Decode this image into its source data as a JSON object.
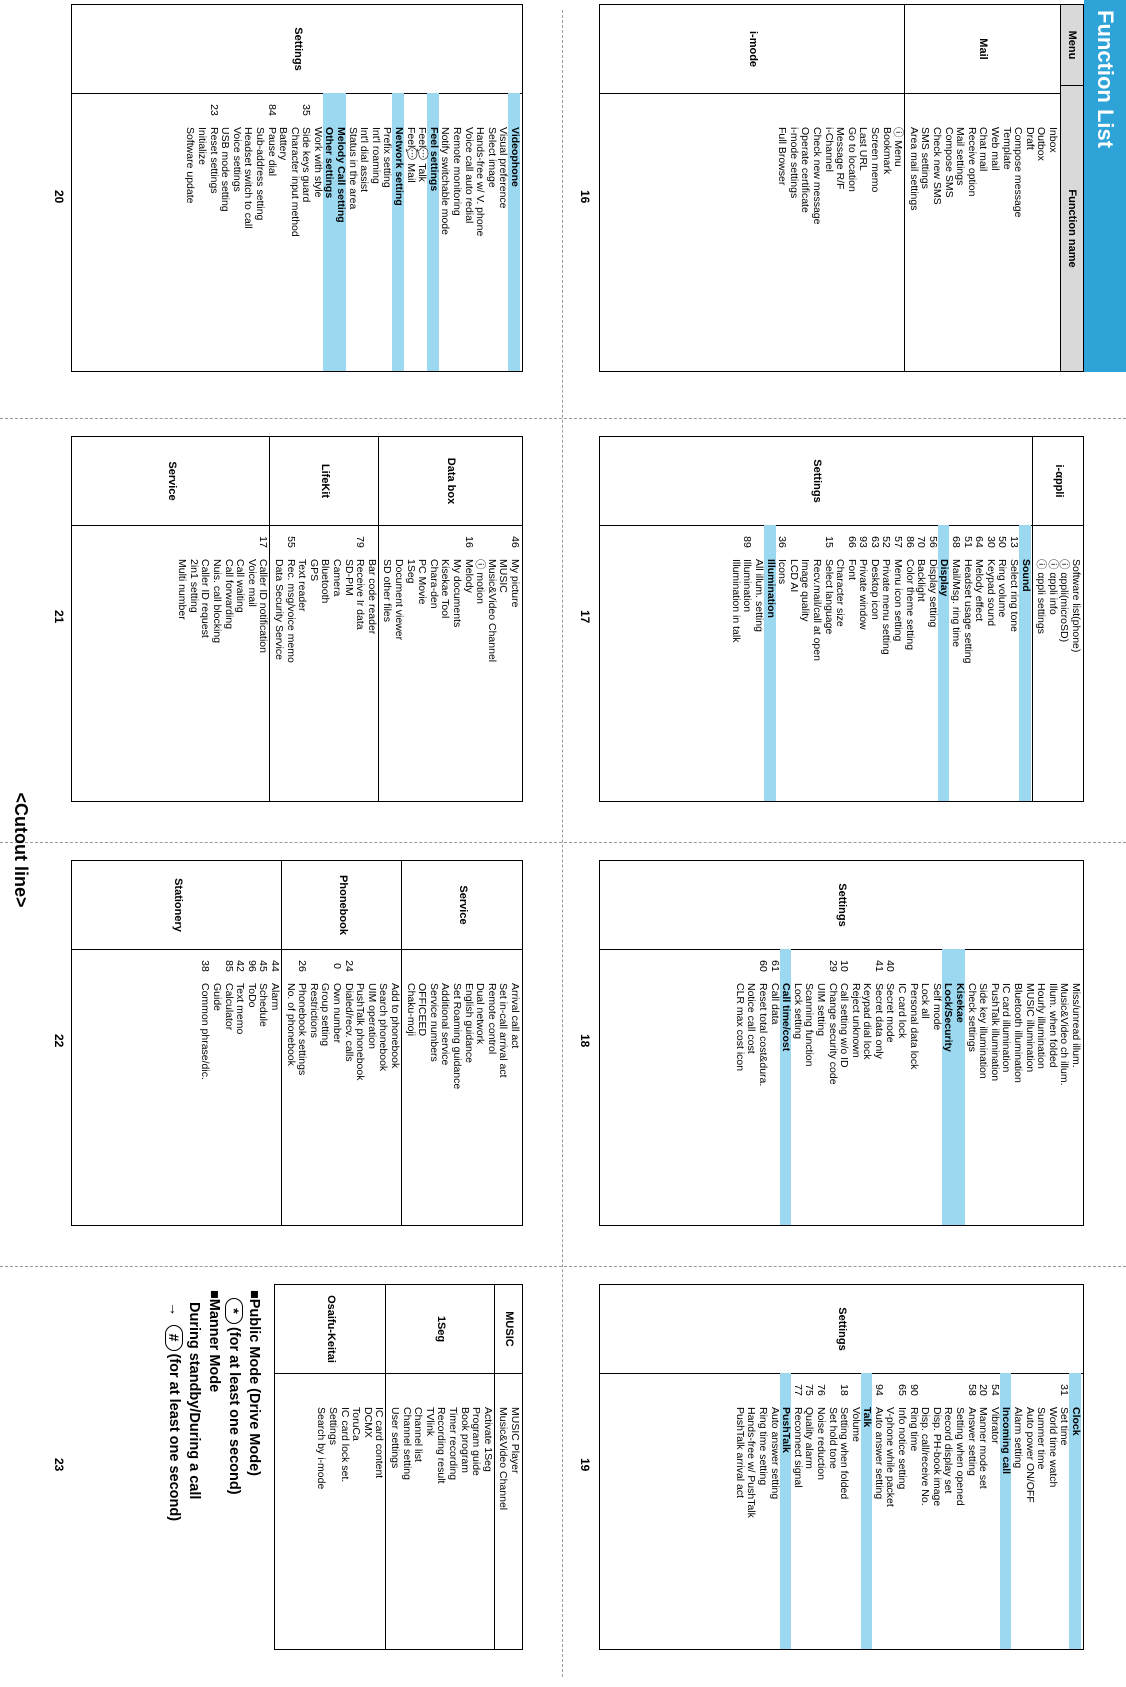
{
  "title": "Function List",
  "cutout_label": "<Cutout line>",
  "header": {
    "menu": "Menu",
    "function_name": "Function name"
  },
  "pages": {
    "p16": "16",
    "p17": "17",
    "p18": "18",
    "p19": "19",
    "p20": "20",
    "p21": "21",
    "p22": "22",
    "p23": "23"
  },
  "modes": {
    "public_title": "■Public Mode (Drive Mode)",
    "public_key": "*",
    "public_desc": "(for at least one second)",
    "manner_title": "■Manner Mode",
    "manner_line": "During standby/During a call",
    "manner_arrow": "→",
    "manner_key": "#",
    "manner_desc": "(for at least one second)"
  },
  "p16": [
    {
      "cat": "Mail",
      "rows": [
        [
          "",
          "Inbox"
        ],
        [
          "",
          "Outbox"
        ],
        [
          "",
          "Draft"
        ],
        [
          "",
          "Compose message"
        ],
        [
          "",
          "Template"
        ],
        [
          "",
          "Web mail"
        ],
        [
          "",
          "Chat mail"
        ],
        [
          "",
          "Receive option"
        ],
        [
          "",
          "Mail settings"
        ],
        [
          "",
          "Compose SMS"
        ],
        [
          "",
          "Check new SMS"
        ],
        [
          "",
          "SMS settings"
        ],
        [
          "",
          "Area mail settings"
        ]
      ]
    },
    {
      "cat": "i-mode",
      "rows": [
        [
          "",
          "ⓘ Menu"
        ],
        [
          "",
          "Bookmark"
        ],
        [
          "",
          "Screen memo"
        ],
        [
          "",
          "Last URL"
        ],
        [
          "",
          "Go to location"
        ],
        [
          "",
          "Message R/F"
        ],
        [
          "",
          "i-Channel"
        ],
        [
          "",
          "Check new message"
        ],
        [
          "",
          "Operate certificate"
        ],
        [
          "",
          "i-mode settings"
        ],
        [
          "",
          "Full Browser"
        ]
      ]
    }
  ],
  "p17": [
    {
      "cat": "i-αppli",
      "rows": [
        [
          "",
          "Software list(phone)"
        ],
        [
          "",
          "ⓘ αppli(microSD)"
        ],
        [
          "",
          "ⓘ αppli info"
        ],
        [
          "",
          "ⓘ αppli settings"
        ]
      ]
    },
    {
      "cat": "Settings",
      "rows": [
        [
          "s",
          "Sound"
        ],
        [
          "13",
          "Select ring tone"
        ],
        [
          "50",
          "Ring volume"
        ],
        [
          "30",
          "Keypad sound"
        ],
        [
          "64",
          "Melody effect"
        ],
        [
          "51",
          "Headset usage setting"
        ],
        [
          "68",
          "Mail/Msg. ring time"
        ],
        [
          "s",
          "Display"
        ],
        [
          "56",
          "Display setting"
        ],
        [
          "70",
          "Backlight"
        ],
        [
          "86",
          "Color theme setting"
        ],
        [
          "57",
          "Menu icon setting"
        ],
        [
          "52",
          "Private menu setting"
        ],
        [
          "63",
          "Desktop icon"
        ],
        [
          "93",
          "Private window"
        ],
        [
          "66",
          "Font"
        ],
        [
          "",
          "Character size"
        ],
        [
          "15",
          "Select language"
        ],
        [
          "",
          "Recv.mail/call at open"
        ],
        [
          "",
          "Image quality"
        ],
        [
          "",
          "LCD AI"
        ],
        [
          "36",
          "Icons"
        ],
        [
          "s",
          "Illumination"
        ],
        [
          "",
          "All illum. setting"
        ],
        [
          "89",
          "Illumination"
        ],
        [
          "",
          "Illumination in talk"
        ]
      ]
    }
  ],
  "p18": [
    {
      "cat": "Settings",
      "rows": [
        [
          "",
          "Miss/unread illum."
        ],
        [
          "",
          "Music&Video ch illum."
        ],
        [
          "",
          "Illum. when folded"
        ],
        [
          "",
          "Hourly illumination"
        ],
        [
          "",
          "MUSIC illumination"
        ],
        [
          "",
          "Bluetooth illumination"
        ],
        [
          "",
          "IC card illumination"
        ],
        [
          "",
          "PushTalk illumination"
        ],
        [
          "",
          "Side key illumination"
        ],
        [
          "",
          "Check settings"
        ],
        [
          "s",
          "Kisekae"
        ],
        [
          "s",
          "Lock/Security"
        ],
        [
          "",
          "Self mode"
        ],
        [
          "",
          "Lock all"
        ],
        [
          "",
          "Personal data lock"
        ],
        [
          "",
          "IC card lock"
        ],
        [
          "40",
          "Secret mode"
        ],
        [
          "41",
          "Secret data only"
        ],
        [
          "",
          "Keypad dial lock"
        ],
        [
          "",
          "Reject unknown"
        ],
        [
          "10",
          "Call setting w/o ID"
        ],
        [
          "29",
          "Change security code"
        ],
        [
          "",
          "UIM setting"
        ],
        [
          "",
          "Scanning function"
        ],
        [
          "",
          "Lock setting"
        ],
        [
          "s",
          "Call time/cost"
        ],
        [
          "61",
          "Call data"
        ],
        [
          "60",
          "Reset total cost&dura."
        ],
        [
          "",
          "Notice call cost"
        ],
        [
          "",
          "CLR max cost icon"
        ]
      ]
    }
  ],
  "p19": [
    {
      "cat": "Settings",
      "rows": [
        [
          "s",
          "Clock"
        ],
        [
          "31",
          "Set time"
        ],
        [
          "",
          "World time watch"
        ],
        [
          "",
          "Summer time"
        ],
        [
          "",
          "Auto power ON/OFF"
        ],
        [
          "",
          "Alarm setting"
        ],
        [
          "s",
          "Incoming call"
        ],
        [
          "54",
          "Vibrator"
        ],
        [
          "20",
          "Manner mode set"
        ],
        [
          "58",
          "Answer setting"
        ],
        [
          "",
          "Setting when opened"
        ],
        [
          "",
          "Record display set"
        ],
        [
          "",
          "Disp. PH-book image"
        ],
        [
          "",
          "Disp. call/receive No."
        ],
        [
          "90",
          "Ring time"
        ],
        [
          "65",
          "Info notice setting"
        ],
        [
          "",
          "V-phone while packet"
        ],
        [
          "94",
          "Auto answer setting"
        ],
        [
          "s",
          "Talk"
        ],
        [
          "",
          "Volume"
        ],
        [
          "18",
          "Setting when folded"
        ],
        [
          "",
          "Set hold tone"
        ],
        [
          "76",
          "Noise reduction"
        ],
        [
          "75",
          "Quality alarm"
        ],
        [
          "77",
          "Reconnect signal"
        ],
        [
          "s",
          "PushTalk"
        ],
        [
          "",
          "Auto answer setting"
        ],
        [
          "",
          "Ring time setting"
        ],
        [
          "",
          "Hands-free w/ PushTalk"
        ],
        [
          "",
          "PushTalk arrival act"
        ]
      ]
    }
  ],
  "p20": [
    {
      "cat": "Settings",
      "rows": [
        [
          "s",
          "Videophone"
        ],
        [
          "",
          "Visual preference"
        ],
        [
          "",
          "Select image"
        ],
        [
          "",
          "Hands-free w/ V. phone"
        ],
        [
          "",
          "Voice call auto redial"
        ],
        [
          "",
          "Remote monitoring"
        ],
        [
          "",
          "Notify switchable mode"
        ],
        [
          "s",
          "Feel settings"
        ],
        [
          "",
          "Feel💬 Talk"
        ],
        [
          "",
          "Feel💬 Mail"
        ],
        [
          "s",
          "Network setting"
        ],
        [
          "",
          "Prefix setting"
        ],
        [
          "",
          "Int'l roaming"
        ],
        [
          "",
          "Int'l dial assist"
        ],
        [
          "",
          "Status in the area"
        ],
        [
          "s",
          "Melody Call setting"
        ],
        [
          "s",
          "Other settings"
        ],
        [
          "",
          "Work with style"
        ],
        [
          "35",
          "Side keys guard"
        ],
        [
          "",
          "Character input method"
        ],
        [
          "",
          "Battery"
        ],
        [
          "84",
          "Pause dial"
        ],
        [
          "",
          "Sub-address setting"
        ],
        [
          "",
          "Headset switch to call"
        ],
        [
          "",
          "Voice settings"
        ],
        [
          "",
          "USB mode setting"
        ],
        [
          "23",
          "Reset settings"
        ],
        [
          "",
          "Initialize"
        ],
        [
          "",
          "Software update"
        ]
      ]
    }
  ],
  "p21": [
    {
      "cat": "Data box",
      "rows": [
        [
          "46",
          "My picture"
        ],
        [
          "",
          "MUSIC"
        ],
        [
          "",
          "Music&Video Channel"
        ],
        [
          "",
          "ⓘ motion"
        ],
        [
          "16",
          "Melody"
        ],
        [
          "",
          "My documents"
        ],
        [
          "",
          "Kisekae Tool"
        ],
        [
          "",
          "Chara-den"
        ],
        [
          "",
          "PC Movie"
        ],
        [
          "",
          "1Seg"
        ],
        [
          "",
          "Document viewer"
        ],
        [
          "",
          "SD other files"
        ]
      ]
    },
    {
      "cat": "LifeKit",
      "rows": [
        [
          "",
          "Bar code reader"
        ],
        [
          "79",
          "Receive Ir data"
        ],
        [
          "",
          "SD-PIM"
        ],
        [
          "",
          "Camera"
        ],
        [
          "",
          "Bluetooth"
        ],
        [
          "",
          "GPS"
        ],
        [
          "",
          "Text reader"
        ],
        [
          "55",
          "Rec. msg/voice memo"
        ],
        [
          "",
          "Data Security Service"
        ]
      ]
    },
    {
      "cat": "Service",
      "rows": [
        [
          "17",
          "Caller ID notification"
        ],
        [
          "",
          "Voice mail"
        ],
        [
          "",
          "Call waiting"
        ],
        [
          "",
          "Call forwarding"
        ],
        [
          "",
          "Nuis. call blocking"
        ],
        [
          "",
          "Caller ID request"
        ],
        [
          "",
          "2in1 setting"
        ],
        [
          "",
          "Multi number"
        ]
      ]
    }
  ],
  "p22": [
    {
      "cat": "Service",
      "rows": [
        [
          "",
          "Arrival call act"
        ],
        [
          "",
          "Set in-call arrival act"
        ],
        [
          "",
          "Remote control"
        ],
        [
          "",
          "Dual network"
        ],
        [
          "",
          "English guidance"
        ],
        [
          "",
          "Set Roaming guidance"
        ],
        [
          "",
          "Additional service"
        ],
        [
          "",
          "Service numbers"
        ],
        [
          "",
          "OFFICEED"
        ],
        [
          "",
          "Chaku-moji"
        ]
      ]
    },
    {
      "cat": "Phonebook",
      "rows": [
        [
          "",
          "Add to phonebook"
        ],
        [
          "",
          "Search phonebook"
        ],
        [
          "",
          "UIM operation"
        ],
        [
          "",
          "PushTalk phonebook"
        ],
        [
          "24",
          "Dialed/recv. calls"
        ],
        [
          "0",
          "Own number"
        ],
        [
          "",
          "Group setting"
        ],
        [
          "",
          "Restrictions"
        ],
        [
          "26",
          "Phonebook settings"
        ],
        [
          "",
          "No. of phonebook"
        ]
      ]
    },
    {
      "cat": "Stationery",
      "rows": [
        [
          "44",
          "Alarm"
        ],
        [
          "45",
          "Schedule"
        ],
        [
          "96",
          "ToDo"
        ],
        [
          "42",
          "Text memo"
        ],
        [
          "85",
          "Calculator"
        ],
        [
          "",
          "Guide"
        ],
        [
          "38",
          "Common phrase/dic."
        ]
      ]
    }
  ],
  "p23": [
    {
      "cat": "MUSIC",
      "rows": [
        [
          "",
          "MUSIC Player"
        ],
        [
          "",
          "Music&Video Channel"
        ]
      ]
    },
    {
      "cat": "1Seg",
      "rows": [
        [
          "",
          "Activate 1Seg"
        ],
        [
          "",
          "Program guide"
        ],
        [
          "",
          "Book program"
        ],
        [
          "",
          "Timer recording"
        ],
        [
          "",
          "Recording result"
        ],
        [
          "",
          "TVlink"
        ],
        [
          "",
          "Channel list"
        ],
        [
          "",
          "Channel setting"
        ],
        [
          "",
          "User settings"
        ]
      ]
    },
    {
      "cat": "Osaifu-Keitai",
      "rows": [
        [
          "",
          "IC card content"
        ],
        [
          "",
          "DCMX"
        ],
        [
          "",
          "ToruCa"
        ],
        [
          "",
          "IC card lock set."
        ],
        [
          "",
          "Settings"
        ],
        [
          "",
          "Search by i-mode"
        ]
      ]
    }
  ]
}
